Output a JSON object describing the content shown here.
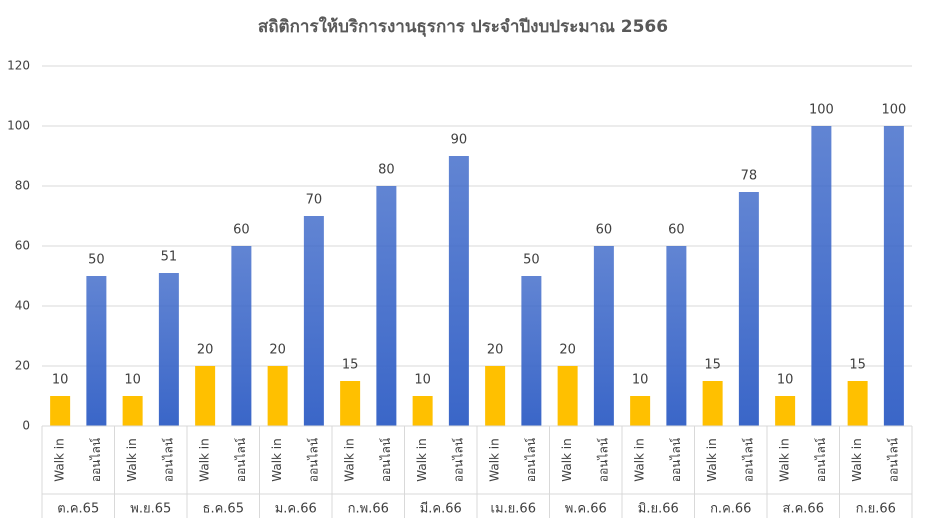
{
  "chart_data": {
    "type": "bar",
    "title": "สถิติการให้บริการงานธุรการ ประจำปีงบประมาณ 2566",
    "categories": [
      "ต.ค.65",
      "พ.ย.65",
      "ธ.ค.65",
      "ม.ค.66",
      "ก.พ.66",
      "มี.ค.66",
      "เม.ย.66",
      "พ.ค.66",
      "มิ.ย.66",
      "ก.ค.66",
      "ส.ค.66",
      "ก.ย.66"
    ],
    "series": [
      {
        "name": "Walk in",
        "color": "#ffc000",
        "values": [
          10,
          10,
          20,
          20,
          15,
          10,
          20,
          20,
          10,
          15,
          10,
          15
        ]
      },
      {
        "name": "ออนไลน์",
        "color": "#3a66c8",
        "values": [
          50,
          51,
          60,
          70,
          80,
          90,
          50,
          60,
          60,
          78,
          100,
          100
        ]
      }
    ],
    "ylim": [
      0,
      120
    ],
    "yticks": [
      0,
      20,
      40,
      60,
      80,
      100,
      120
    ],
    "grid": true
  }
}
